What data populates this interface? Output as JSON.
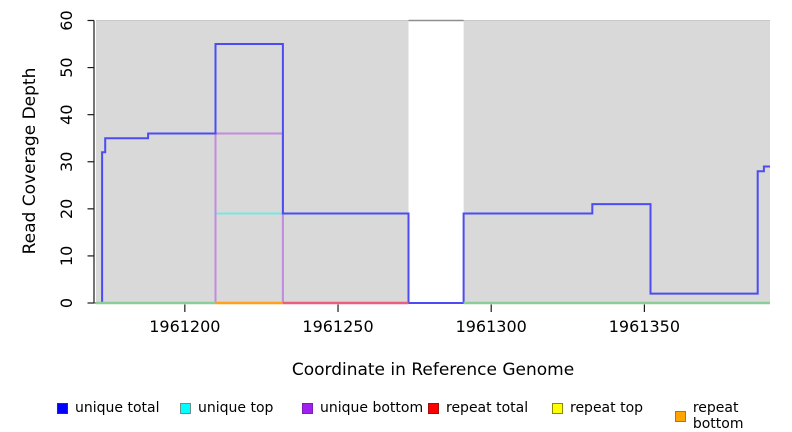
{
  "chart_data": {
    "type": "line",
    "subtype": "step",
    "title": "",
    "xlabel": "Coordinate in Reference Genome",
    "ylabel": "Read Coverage Depth",
    "xlim": [
      1961171,
      1961391
    ],
    "ylim": [
      0,
      60
    ],
    "x_ticks": [
      1961200,
      1961250,
      1961300,
      1961350
    ],
    "y_ticks": [
      0,
      10,
      20,
      30,
      40,
      50,
      60
    ],
    "grid": "off",
    "legend_position": "bottom",
    "plot_background": "#d9d9d9",
    "gap_region": {
      "start": 1961273,
      "end": 1961291,
      "fill": "#ffffff",
      "top_edge_color": "#8f8f8f"
    },
    "plot_top_edge_color": "#c8c8c8",
    "series": [
      {
        "name": "unique total",
        "legend_color": "#0000ff",
        "plot_color": "#4c4cf2",
        "steps": [
          [
            1961171,
            0
          ],
          [
            1961173,
            32
          ],
          [
            1961174,
            35
          ],
          [
            1961188,
            36
          ],
          [
            1961210,
            55
          ],
          [
            1961232,
            19
          ],
          [
            1961273,
            0
          ],
          [
            1961291,
            19
          ],
          [
            1961333,
            21
          ],
          [
            1961352,
            2
          ],
          [
            1961387,
            28
          ],
          [
            1961389,
            29
          ]
        ],
        "end": 1961391
      },
      {
        "name": "unique top",
        "legend_color": "#00ffff",
        "plot_color": "#76e7e3",
        "steps": [
          [
            1961171,
            0
          ],
          [
            1961210,
            19
          ],
          [
            1961232,
            0
          ]
        ],
        "end": 1961391
      },
      {
        "name": "unique bottom",
        "legend_color": "#a020f0",
        "plot_color": "#c18ce0",
        "steps": [
          [
            1961171,
            0
          ],
          [
            1961210,
            36
          ],
          [
            1961232,
            0
          ]
        ],
        "end": 1961391
      },
      {
        "name": "repeat total",
        "legend_color": "#ff0000",
        "plot_color": "#e95f7d",
        "steps": [
          [
            1961171,
            0
          ]
        ],
        "end": 1961391
      },
      {
        "name": "repeat top",
        "legend_color": "#ffff00",
        "plot_color": "#e6e66e",
        "steps": [
          [
            1961171,
            0
          ]
        ],
        "end": 1961391
      },
      {
        "name": "repeat bottom",
        "legend_color": "#ffa500",
        "plot_color": "#ffa01e",
        "steps": [
          [
            1961171,
            0
          ]
        ],
        "end": 1961391
      }
    ],
    "baseline_segments": [
      {
        "from": 1961171,
        "to": 1961210,
        "color": "#8ccc96"
      },
      {
        "from": 1961210,
        "to": 1961232,
        "color": "#ffa01e"
      },
      {
        "from": 1961232,
        "to": 1961273,
        "color": "#e95f7d"
      },
      {
        "from": 1961291,
        "to": 1961391,
        "color": "#8ccc96"
      }
    ]
  },
  "legend": {
    "items": [
      {
        "label": "unique total",
        "color": "#0000ff",
        "border": "#2222cc"
      },
      {
        "label": "unique top",
        "color": "#00ffff",
        "border": "#6b8e8e"
      },
      {
        "label": "unique bottom",
        "color": "#a020f0",
        "border": "#7a1fb8"
      },
      {
        "label": "repeat total",
        "color": "#ff0000",
        "border": "#a01010"
      },
      {
        "label": "repeat top",
        "color": "#ffff00",
        "border": "#8a8a00"
      },
      {
        "label": "repeat bottom",
        "color": "#ffa500",
        "border": "#b87400"
      }
    ]
  }
}
